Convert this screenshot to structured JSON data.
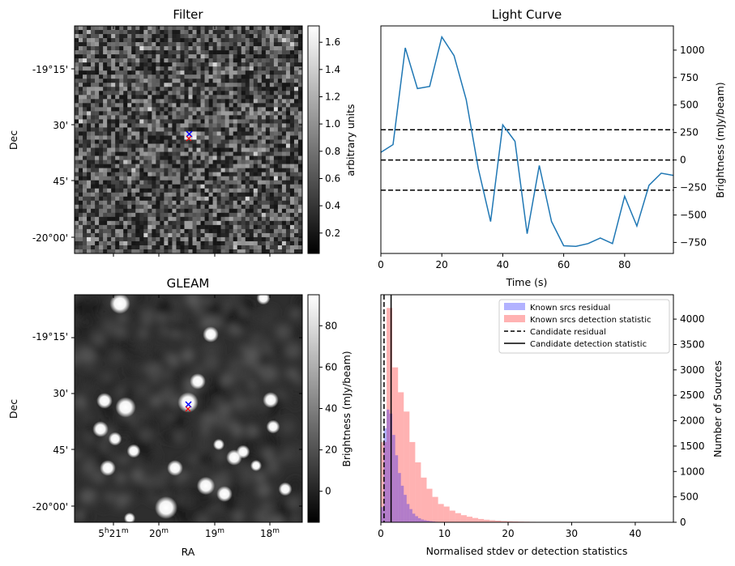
{
  "panels": {
    "filter": {
      "title": "Filter",
      "ylabel": "Dec",
      "dec_ticks": [
        "-19°15'",
        "30'",
        "45'",
        "-20°00'"
      ],
      "colorbar": {
        "label": "arbitrary units",
        "ticks": [
          "0.2",
          "0.4",
          "0.6",
          "0.8",
          "1.0",
          "1.2",
          "1.4",
          "1.6"
        ],
        "min": 0.05,
        "max": 1.72
      }
    },
    "gleam": {
      "title": "GLEAM",
      "ylabel": "Dec",
      "xlabel": "RA",
      "dec_ticks": [
        "-19°15'",
        "30'",
        "45'",
        "-20°00'"
      ],
      "ra_ticks": [
        {
          "main": "5",
          "sup1": "h",
          "mid": "21",
          "sup2": "m"
        },
        {
          "main": "20",
          "sup2": "m"
        },
        {
          "main": "19",
          "sup2": "m"
        },
        {
          "main": "18",
          "sup2": "m"
        }
      ],
      "colorbar": {
        "label": "Brightness (mJy/beam)",
        "ticks": [
          "0",
          "20",
          "40",
          "60",
          "80"
        ],
        "values": [
          0,
          20,
          40,
          60,
          80
        ],
        "min": -15,
        "max": 95
      }
    }
  },
  "chart_data": [
    {
      "type": "line",
      "title": "Light Curve",
      "xlabel": "Time (s)",
      "ylabel": "Brightness (mJy/beam)",
      "xlim": [
        0,
        96
      ],
      "ylim": [
        -850,
        1220
      ],
      "xticks": [
        0,
        20,
        40,
        60,
        80
      ],
      "yticks": [
        -750,
        -500,
        -250,
        0,
        250,
        500,
        750,
        1000
      ],
      "color": "#1f77b4",
      "x": [
        0,
        4,
        8,
        12,
        16,
        20,
        24,
        28,
        32,
        36,
        40,
        44,
        48,
        52,
        56,
        60,
        64,
        68,
        72,
        76,
        80,
        84,
        88,
        92,
        96
      ],
      "y": [
        70,
        140,
        1020,
        650,
        670,
        1120,
        950,
        550,
        -80,
        -560,
        320,
        170,
        -670,
        -50,
        -560,
        -780,
        -785,
        -760,
        -710,
        -760,
        -330,
        -600,
        -230,
        -120,
        -140
      ],
      "hlines": [
        {
          "y": 275,
          "style": "dashed"
        },
        {
          "y": 0,
          "style": "dashed"
        },
        {
          "y": -275,
          "style": "dashed"
        }
      ]
    },
    {
      "type": "bar",
      "subtype": "histogram",
      "xlabel": "Normalised stdev or detection statistics",
      "ylabel": "Number of Sources",
      "xlim": [
        0,
        46
      ],
      "ylim": [
        0,
        4480
      ],
      "xticks": [
        0,
        10,
        20,
        30,
        40
      ],
      "yticks": [
        0,
        500,
        1000,
        1500,
        2000,
        2500,
        3000,
        3500,
        4000
      ],
      "series": [
        {
          "name": "Known srcs residual",
          "color": "#0000ff",
          "alpha": 0.3,
          "bin_start": 0,
          "bin_width": 0.45,
          "values": [
            300,
            1850,
            2220,
            2140,
            1720,
            1320,
            970,
            720,
            540,
            360,
            260,
            170,
            120,
            80,
            55,
            40,
            30,
            22,
            15,
            10,
            7,
            5,
            3,
            2,
            1
          ]
        },
        {
          "name": "Known srcs detection statistic",
          "color": "#ff0000",
          "alpha": 0.3,
          "bin_start": 0,
          "bin_width": 0.9,
          "values": [
            1580,
            4220,
            3050,
            2560,
            2180,
            1580,
            1180,
            880,
            660,
            500,
            360,
            310,
            230,
            180,
            140,
            110,
            85,
            65,
            50,
            40,
            32,
            25,
            20,
            16,
            13,
            11,
            9,
            8,
            7,
            6,
            5,
            5,
            4,
            4,
            3,
            3,
            3,
            2,
            2,
            2,
            2,
            1,
            1,
            1,
            1,
            1,
            1,
            1,
            1,
            1
          ]
        }
      ],
      "vlines": [
        {
          "name": "Candidate residual",
          "x": 0.5,
          "style": "dashed",
          "color": "#000000"
        },
        {
          "name": "Candidate detection statistic",
          "x": 1.6,
          "style": "solid",
          "color": "#000000"
        }
      ],
      "legend": "top-right"
    }
  ]
}
